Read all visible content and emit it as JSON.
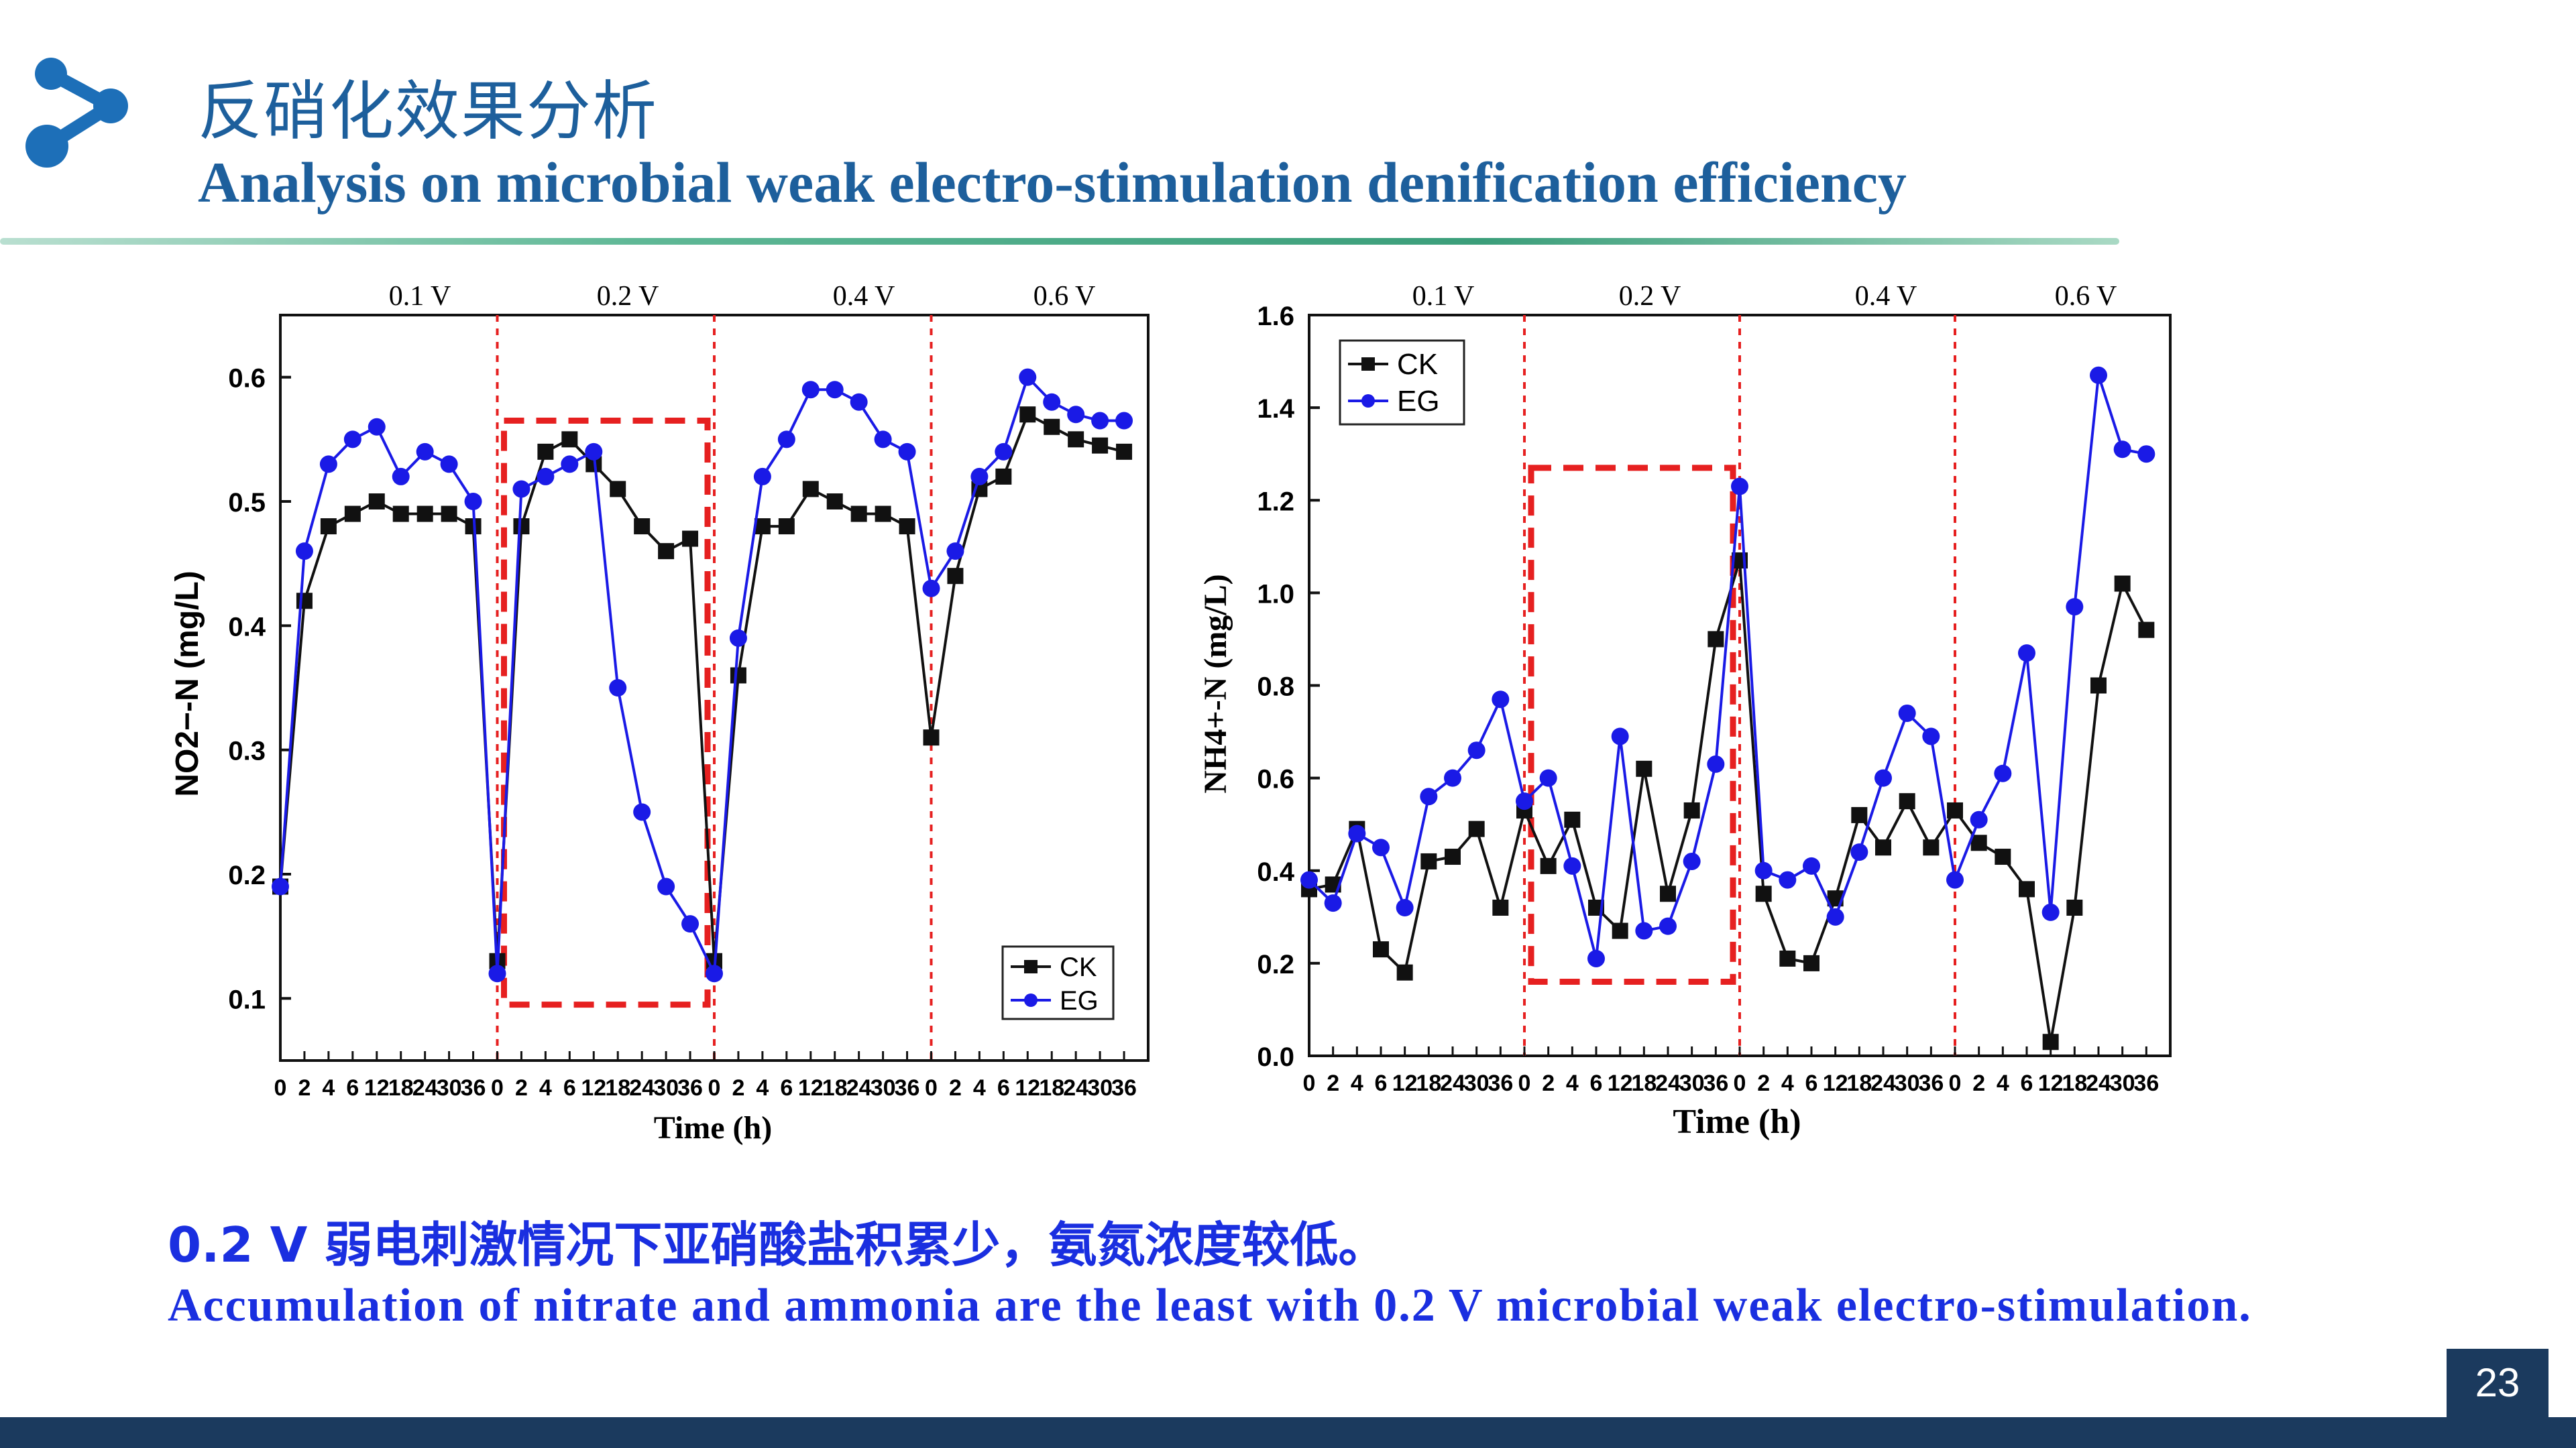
{
  "header": {
    "title_cn": "反硝化效果分析",
    "title_en": "Analysis on microbial weak electro-stimulation denification efficiency"
  },
  "conclusion": {
    "cn": "0.2 V 弱电刺激情况下亚硝酸盐积累少，氨氮浓度较低。",
    "en": "Accumulation of  nitrate and  ammonia are the least with 0.2 V microbial weak electro-stimulation."
  },
  "page_number": "23",
  "colors": {
    "ck": "#111111",
    "eg": "#1a1ae6",
    "divider": "#e62020",
    "title": "#1d5f9c",
    "footer": "#1b3a5e"
  },
  "chart_data": [
    {
      "type": "line",
      "xlabel": "Time (h)",
      "ylabel": "NO2−-N (mg/L)",
      "ylim": [
        0.05,
        0.65
      ],
      "yticks": [
        "0.1",
        "0.2",
        "0.3",
        "0.4",
        "0.5",
        "0.6"
      ],
      "x_ticks": [
        "0",
        "2",
        "4",
        "6",
        "12",
        "18",
        "24",
        "30",
        "36"
      ],
      "phases": [
        "0.1 V",
        "0.2 V",
        "0.4 V",
        "0.6 V"
      ],
      "legend": {
        "position": "bottom-right",
        "entries": [
          "CK",
          "EG"
        ]
      },
      "highlight_phase": "0.2 V",
      "series": [
        {
          "name": "CK",
          "values": [
            0.19,
            0.42,
            0.48,
            0.49,
            0.5,
            0.49,
            0.49,
            0.49,
            0.48,
            0.13,
            0.48,
            0.54,
            0.55,
            0.53,
            0.51,
            0.48,
            0.46,
            0.47,
            0.13,
            0.36,
            0.48,
            0.48,
            0.51,
            0.5,
            0.49,
            0.49,
            0.48,
            0.31,
            0.44,
            0.51,
            0.52,
            0.57,
            0.56,
            0.55,
            0.545,
            0.54
          ]
        },
        {
          "name": "EG",
          "values": [
            0.19,
            0.46,
            0.53,
            0.55,
            0.56,
            0.52,
            0.54,
            0.53,
            0.5,
            0.12,
            0.51,
            0.52,
            0.53,
            0.54,
            0.35,
            0.25,
            0.19,
            0.16,
            0.12,
            0.39,
            0.52,
            0.55,
            0.59,
            0.59,
            0.58,
            0.55,
            0.54,
            0.43,
            0.46,
            0.52,
            0.54,
            0.6,
            0.58,
            0.57,
            0.565,
            0.565
          ]
        }
      ]
    },
    {
      "type": "line",
      "xlabel": "Time (h)",
      "ylabel": "NH4+-N (mg/L)",
      "ylim": [
        0.0,
        1.6
      ],
      "yticks": [
        "0.0",
        "0.2",
        "0.4",
        "0.6",
        "0.8",
        "1.0",
        "1.2",
        "1.4",
        "1.6"
      ],
      "x_ticks": [
        "0",
        "2",
        "4",
        "6",
        "12",
        "18",
        "24",
        "30",
        "36"
      ],
      "phases": [
        "0.1 V",
        "0.2 V",
        "0.4 V",
        "0.6 V"
      ],
      "legend": {
        "position": "top-left",
        "entries": [
          "CK",
          "EG"
        ]
      },
      "highlight_phase": "0.2 V",
      "series": [
        {
          "name": "CK",
          "values": [
            0.36,
            0.37,
            0.49,
            0.23,
            0.18,
            0.42,
            0.43,
            0.49,
            0.32,
            0.53,
            0.41,
            0.51,
            0.32,
            0.27,
            0.62,
            0.35,
            0.53,
            0.9,
            1.07,
            0.35,
            0.21,
            0.2,
            0.34,
            0.52,
            0.45,
            0.55,
            0.45,
            0.53,
            0.46,
            0.43,
            0.36,
            0.03,
            0.32,
            0.8,
            1.02,
            0.92
          ]
        },
        {
          "name": "EG",
          "values": [
            0.38,
            0.33,
            0.48,
            0.45,
            0.32,
            0.56,
            0.6,
            0.66,
            0.77,
            0.55,
            0.6,
            0.41,
            0.21,
            0.69,
            0.27,
            0.28,
            0.42,
            0.63,
            1.23,
            0.4,
            0.38,
            0.41,
            0.3,
            0.44,
            0.6,
            0.74,
            0.69,
            0.38,
            0.51,
            0.61,
            0.87,
            0.31,
            0.97,
            1.47,
            1.31,
            1.3
          ]
        }
      ]
    }
  ]
}
